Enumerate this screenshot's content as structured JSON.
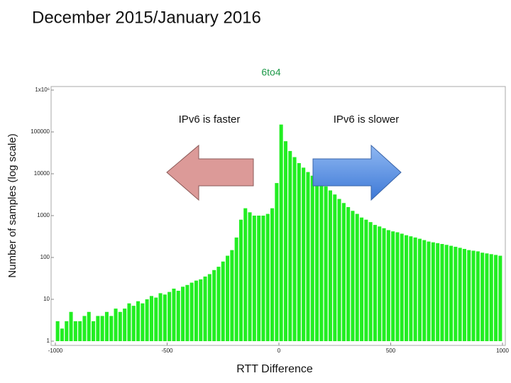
{
  "chart_data": {
    "type": "histogram",
    "title": "December 2015/January 2016",
    "subtitle": "6to4",
    "xlabel": "RTT Difference",
    "ylabel": "Number of samples (log scale)",
    "annotations": [
      "IPv6 is faster",
      "IPv6 is slower"
    ],
    "color": "#22ee22",
    "log_y": true,
    "bins": [
      -1000,
      -980,
      -960,
      -940,
      -920,
      -900,
      -880,
      -860,
      -840,
      -820,
      -800,
      -780,
      -760,
      -740,
      -720,
      -700,
      -680,
      -660,
      -640,
      -620,
      -600,
      -580,
      -560,
      -540,
      -520,
      -500,
      -480,
      -460,
      -440,
      -420,
      -400,
      -380,
      -360,
      -340,
      -320,
      -300,
      -280,
      -260,
      -240,
      -220,
      -200,
      -180,
      -160,
      -140,
      -120,
      -100,
      -80,
      -60,
      -40,
      -20,
      0,
      20,
      40,
      60,
      80,
      100,
      120,
      140,
      160,
      180,
      200,
      220,
      240,
      260,
      280,
      300,
      320,
      340,
      360,
      380,
      400,
      420,
      440,
      460,
      480,
      500,
      520,
      540,
      560,
      580,
      600,
      620,
      640,
      660,
      680,
      700,
      720,
      740,
      760,
      780,
      800,
      820,
      840,
      860,
      880,
      900,
      920,
      940,
      960,
      980,
      1000
    ],
    "values": [
      3,
      2,
      3,
      5,
      3,
      3,
      4,
      5,
      3,
      4,
      4,
      5,
      4,
      6,
      5,
      6,
      8,
      7,
      9,
      8,
      10,
      12,
      11,
      14,
      13,
      15,
      18,
      16,
      20,
      22,
      25,
      28,
      30,
      35,
      40,
      50,
      60,
      80,
      110,
      150,
      300,
      800,
      1500,
      1200,
      1000,
      1000,
      1000,
      1100,
      1500,
      6000,
      150000,
      60000,
      35000,
      25000,
      18000,
      14000,
      11000,
      9000,
      7500,
      6000,
      5000,
      4000,
      3200,
      2500,
      2000,
      1600,
      1300,
      1100,
      900,
      800,
      700,
      600,
      550,
      500,
      450,
      420,
      400,
      370,
      340,
      320,
      300,
      280,
      260,
      240,
      230,
      220,
      210,
      200,
      190,
      180,
      170,
      160,
      150,
      145,
      140,
      130,
      125,
      120,
      115,
      110
    ],
    "xlim": [
      -1000,
      1000
    ],
    "xticks": [
      -1000,
      -500,
      0,
      500,
      1000
    ],
    "ylim": [
      1,
      1000000
    ],
    "yticks": [
      1,
      10,
      100,
      1000,
      10000,
      100000,
      {
        "value": 1000000,
        "label": "1x10⁶"
      }
    ]
  }
}
